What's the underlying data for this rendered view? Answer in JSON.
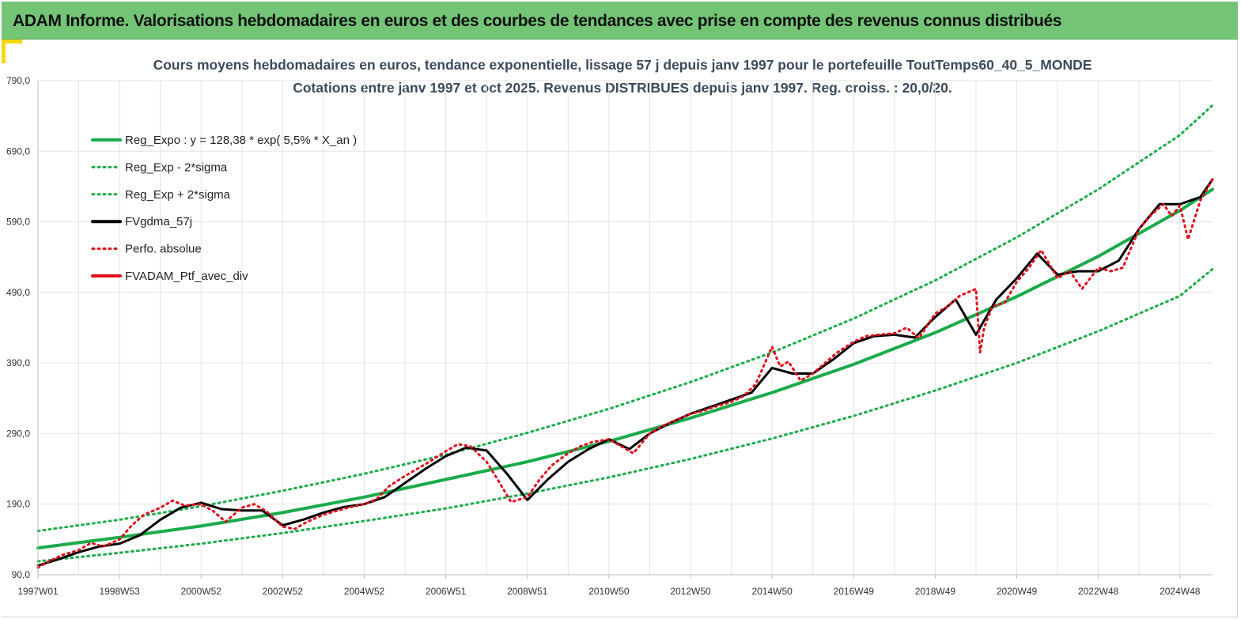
{
  "banner": {
    "title": "ADAM Informe. Valorisations hebdomadaires en euros et des courbes de tendances avec prise en compte des revenus connus distribués"
  },
  "chart_data": {
    "type": "line",
    "title": "Cours moyens hebdomadaires  en euros, tendance exponentielle, lissage 57 j depuis janv 1997 pour le portefeuille ToutTemps60_40_5_MONDE",
    "subtitle": "Cotations  entre janv 1997 et oct 2025. Revenus DISTRIBUES depuis janv 1997. Reg. croiss. : 20,0/20.",
    "xlabel": "",
    "ylabel": "",
    "x_ticks": [
      "1997W01",
      "1998W53",
      "2000W52",
      "2002W52",
      "2004W52",
      "2006W51",
      "2008W51",
      "2010W50",
      "2012W50",
      "2014W50",
      "2016W49",
      "2018W49",
      "2020W49",
      "2022W48",
      "2024W48"
    ],
    "x_tick_years": [
      1997.0,
      1999.0,
      2001.0,
      2003.0,
      2005.0,
      2007.0,
      2009.0,
      2011.0,
      2013.0,
      2015.0,
      2017.0,
      2019.0,
      2021.0,
      2023.0,
      2025.0
    ],
    "xlim": [
      1997.0,
      2025.8
    ],
    "y_ticks": [
      "90,0",
      "190,0",
      "290,0",
      "390,0",
      "490,0",
      "590,0",
      "690,0",
      "790,0"
    ],
    "y_tick_values": [
      90,
      190,
      290,
      390,
      490,
      590,
      690,
      790
    ],
    "ylim": [
      90,
      790
    ],
    "grid": true,
    "legend_position": "top-left",
    "legend": [
      {
        "label": "Reg_Expo : y = 128,38 * exp( 5,5% *  X_an )",
        "color": "#1aab4a",
        "style": "solid"
      },
      {
        "label": "Reg_Exp - 2*sigma",
        "color": "#1aab4a",
        "style": "dotted"
      },
      {
        "label": "Reg_Exp + 2*sigma",
        "color": "#1aab4a",
        "style": "dotted"
      },
      {
        "label": "FVgdma_57j",
        "color": "#000000",
        "style": "solid"
      },
      {
        "label": "Perfo. absolue",
        "color": "#e0101c",
        "style": "dotted"
      },
      {
        "label": "FVADAM_Ptf_avec_div",
        "color": "#e0101c",
        "style": "solid"
      }
    ],
    "series": [
      {
        "name": "Reg_Expo : y = 128,38 * exp( 5,5% *  X_an )",
        "color": "#1aab4a",
        "x": [
          1997.0,
          1999.0,
          2001.0,
          2003.0,
          2005.0,
          2007.0,
          2009.0,
          2011.0,
          2013.0,
          2015.0,
          2017.0,
          2019.0,
          2021.0,
          2023.0,
          2025.0,
          2025.8
        ],
        "values": [
          128,
          143,
          159,
          178,
          200,
          225,
          250,
          279,
          312,
          348,
          388,
          433,
          484,
          541,
          606,
          636
        ]
      },
      {
        "name": "Reg_Exp - 2*sigma",
        "color": "#1aab4a",
        "x": [
          1997.0,
          1999.0,
          2001.0,
          2003.0,
          2005.0,
          2007.0,
          2009.0,
          2011.0,
          2013.0,
          2015.0,
          2017.0,
          2019.0,
          2021.0,
          2023.0,
          2025.0,
          2025.8
        ],
        "values": [
          109,
          121,
          134,
          149,
          166,
          184,
          205,
          228,
          254,
          283,
          315,
          351,
          390,
          435,
          485,
          523
        ]
      },
      {
        "name": "Reg_Exp + 2*sigma",
        "color": "#1aab4a",
        "x": [
          1997.0,
          1999.0,
          2001.0,
          2003.0,
          2005.0,
          2007.0,
          2009.0,
          2011.0,
          2013.0,
          2015.0,
          2017.0,
          2019.0,
          2021.0,
          2023.0,
          2025.0,
          2025.8
        ],
        "values": [
          152,
          168,
          187,
          209,
          233,
          260,
          291,
          325,
          363,
          405,
          453,
          507,
          568,
          636,
          713,
          755
        ]
      },
      {
        "name": "FVgdma_57j",
        "color": "#000000",
        "x": [
          1997.0,
          1997.5,
          1998.0,
          1998.5,
          1999.0,
          1999.5,
          2000.0,
          2000.5,
          2001.0,
          2001.5,
          2002.0,
          2002.5,
          2003.0,
          2003.5,
          2004.0,
          2004.5,
          2005.0,
          2005.5,
          2006.0,
          2006.5,
          2007.0,
          2007.5,
          2008.0,
          2008.5,
          2009.0,
          2009.5,
          2010.0,
          2010.5,
          2011.0,
          2011.5,
          2012.0,
          2012.5,
          2013.0,
          2013.5,
          2014.0,
          2014.5,
          2015.0,
          2015.5,
          2016.0,
          2016.5,
          2017.0,
          2017.5,
          2018.0,
          2018.5,
          2019.0,
          2019.5,
          2020.0,
          2020.5,
          2021.0,
          2021.5,
          2022.0,
          2022.5,
          2023.0,
          2023.5,
          2024.0,
          2024.5,
          2025.0,
          2025.5,
          2025.8
        ],
        "values": [
          103,
          112,
          122,
          130,
          134,
          146,
          168,
          185,
          192,
          183,
          181,
          181,
          160,
          168,
          178,
          186,
          190,
          200,
          220,
          240,
          258,
          270,
          266,
          233,
          196,
          225,
          250,
          268,
          282,
          268,
          290,
          305,
          318,
          328,
          338,
          348,
          383,
          375,
          375,
          395,
          418,
          428,
          430,
          426,
          455,
          480,
          430,
          480,
          510,
          545,
          515,
          520,
          520,
          535,
          580,
          615,
          615,
          625,
          650
        ]
      },
      {
        "name": "FVADAM_Ptf_avec_div",
        "color": "#e0101c",
        "x": [
          1997.0,
          1997.3,
          1997.6,
          1998.0,
          1998.3,
          1998.6,
          1999.0,
          1999.3,
          1999.6,
          2000.0,
          2000.3,
          2000.6,
          2001.0,
          2001.3,
          2001.6,
          2002.0,
          2002.3,
          2002.6,
          2003.0,
          2003.3,
          2003.6,
          2004.0,
          2004.3,
          2004.6,
          2005.0,
          2005.3,
          2005.6,
          2006.0,
          2006.3,
          2006.6,
          2007.0,
          2007.3,
          2007.6,
          2008.0,
          2008.3,
          2008.6,
          2009.0,
          2009.3,
          2009.6,
          2010.0,
          2010.3,
          2010.6,
          2011.0,
          2011.3,
          2011.6,
          2012.0,
          2012.3,
          2012.6,
          2013.0,
          2013.3,
          2013.6,
          2014.0,
          2014.3,
          2014.6,
          2015.0,
          2015.2,
          2015.4,
          2015.7,
          2016.0,
          2016.3,
          2016.6,
          2017.0,
          2017.3,
          2017.6,
          2018.0,
          2018.3,
          2018.6,
          2019.0,
          2019.3,
          2019.6,
          2020.0,
          2020.1,
          2020.2,
          2020.4,
          2020.7,
          2021.0,
          2021.3,
          2021.6,
          2022.0,
          2022.3,
          2022.6,
          2023.0,
          2023.3,
          2023.6,
          2024.0,
          2024.3,
          2024.6,
          2024.8,
          2025.0,
          2025.2,
          2025.5,
          2025.8
        ],
        "values": [
          100,
          110,
          118,
          125,
          135,
          130,
          140,
          160,
          175,
          185,
          195,
          188,
          190,
          180,
          165,
          185,
          190,
          180,
          158,
          155,
          165,
          175,
          180,
          185,
          190,
          197,
          215,
          230,
          240,
          250,
          265,
          275,
          272,
          250,
          222,
          193,
          200,
          225,
          245,
          262,
          272,
          278,
          282,
          272,
          262,
          290,
          300,
          308,
          318,
          322,
          328,
          335,
          343,
          360,
          413,
          385,
          392,
          365,
          375,
          390,
          405,
          420,
          428,
          430,
          432,
          440,
          425,
          460,
          470,
          485,
          495,
          405,
          440,
          470,
          475,
          505,
          525,
          550,
          510,
          520,
          495,
          525,
          520,
          525,
          580,
          600,
          615,
          598,
          613,
          565,
          620,
          650
        ]
      }
    ]
  }
}
